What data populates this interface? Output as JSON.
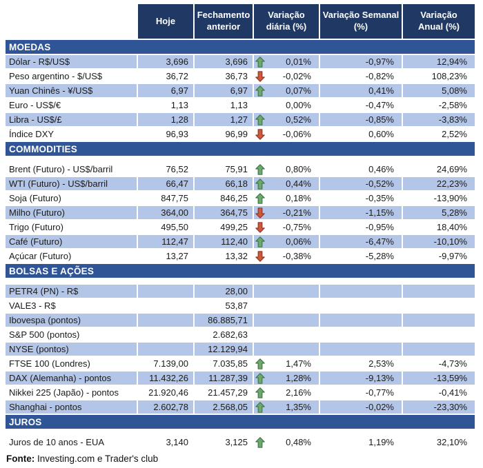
{
  "header": {
    "columns": [
      "Hoje",
      "Fechamento anterior",
      "Variação diária (%)",
      "Variação Semanal (%)",
      "Variação Anual (%)"
    ]
  },
  "sections": [
    {
      "title": "MOEDAS",
      "spacer_after_header": false,
      "rows": [
        {
          "label": "Dólar - R$/US$",
          "hoje": "3,696",
          "fechamento": "3,696",
          "arrow": "up",
          "diaria": "0,01%",
          "semanal": "-0,97%",
          "anual": "12,94%",
          "shaded": true
        },
        {
          "label": "Peso argentino - $/US$",
          "hoje": "36,72",
          "fechamento": "36,73",
          "arrow": "down",
          "diaria": "-0,02%",
          "semanal": "-0,82%",
          "anual": "108,23%",
          "shaded": false
        },
        {
          "label": "Yuan Chinês - ¥/US$",
          "hoje": "6,97",
          "fechamento": "6,97",
          "arrow": "up",
          "diaria": "0,07%",
          "semanal": "0,41%",
          "anual": "5,08%",
          "shaded": true
        },
        {
          "label": "Euro - US$/€",
          "hoje": "1,13",
          "fechamento": "1,13",
          "arrow": "none",
          "diaria": "0,00%",
          "semanal": "-0,47%",
          "anual": "-2,58%",
          "shaded": false
        },
        {
          "label": "Libra - US$/£",
          "hoje": "1,28",
          "fechamento": "1,27",
          "arrow": "up",
          "diaria": "0,52%",
          "semanal": "-0,85%",
          "anual": "-3,83%",
          "shaded": true
        },
        {
          "label": "Índice DXY",
          "hoje": "96,93",
          "fechamento": "96,99",
          "arrow": "down",
          "diaria": "-0,06%",
          "semanal": "0,60%",
          "anual": "2,52%",
          "shaded": false
        }
      ]
    },
    {
      "title": "COMMODITIES",
      "spacer_after_header": true,
      "rows": [
        {
          "label": "Brent (Futuro) - US$/barril",
          "hoje": "76,52",
          "fechamento": "75,91",
          "arrow": "up",
          "diaria": "0,80%",
          "semanal": "0,46%",
          "anual": "24,69%",
          "shaded": false
        },
        {
          "label": "WTI (Futuro) - US$/barril",
          "hoje": "66,47",
          "fechamento": "66,18",
          "arrow": "up",
          "diaria": "0,44%",
          "semanal": "-0,52%",
          "anual": "22,23%",
          "shaded": true
        },
        {
          "label": "Soja (Futuro)",
          "hoje": "847,75",
          "fechamento": "846,25",
          "arrow": "up",
          "diaria": "0,18%",
          "semanal": "-0,35%",
          "anual": "-13,90%",
          "shaded": false
        },
        {
          "label": "Milho (Futuro)",
          "hoje": "364,00",
          "fechamento": "364,75",
          "arrow": "down",
          "diaria": "-0,21%",
          "semanal": "-1,15%",
          "anual": "5,28%",
          "shaded": true
        },
        {
          "label": "Trigo (Futuro)",
          "hoje": "495,50",
          "fechamento": "499,25",
          "arrow": "down",
          "diaria": "-0,75%",
          "semanal": "-0,95%",
          "anual": "18,40%",
          "shaded": false
        },
        {
          "label": "Café (Futuro)",
          "hoje": "112,47",
          "fechamento": "112,40",
          "arrow": "up",
          "diaria": "0,06%",
          "semanal": "-6,47%",
          "anual": "-10,10%",
          "shaded": true
        },
        {
          "label": "Açúcar (Futuro)",
          "hoje": "13,27",
          "fechamento": "13,32",
          "arrow": "down",
          "diaria": "-0,38%",
          "semanal": "-5,28%",
          "anual": "-9,97%",
          "shaded": false
        }
      ]
    },
    {
      "title": "BOLSAS E AÇÕES",
      "spacer_after_header": true,
      "rows": [
        {
          "label": "PETR4 (PN) - R$",
          "hoje": "",
          "fechamento": "28,00",
          "arrow": "none",
          "diaria": "",
          "semanal": "",
          "anual": "",
          "shaded": true
        },
        {
          "label": "VALE3 - R$",
          "hoje": "",
          "fechamento": "53,87",
          "arrow": "none",
          "diaria": "",
          "semanal": "",
          "anual": "",
          "shaded": false
        },
        {
          "label": "Ibovespa (pontos)",
          "hoje": "",
          "fechamento": "86.885,71",
          "arrow": "none",
          "diaria": "",
          "semanal": "",
          "anual": "",
          "shaded": true
        },
        {
          "label": "S&P 500 (pontos)",
          "hoje": "",
          "fechamento": "2.682,63",
          "arrow": "none",
          "diaria": "",
          "semanal": "",
          "anual": "",
          "shaded": false
        },
        {
          "label": "NYSE (pontos)",
          "hoje": "",
          "fechamento": "12.129,94",
          "arrow": "none",
          "diaria": "",
          "semanal": "",
          "anual": "",
          "shaded": true
        },
        {
          "label": "FTSE 100 (Londres)",
          "hoje": "7.139,00",
          "fechamento": "7.035,85",
          "arrow": "up",
          "diaria": "1,47%",
          "semanal": "2,53%",
          "anual": "-4,73%",
          "shaded": false
        },
        {
          "label": "DAX (Alemanha) - pontos",
          "hoje": "11.432,26",
          "fechamento": "11.287,39",
          "arrow": "up",
          "diaria": "1,28%",
          "semanal": "-9,13%",
          "anual": "-13,59%",
          "shaded": true
        },
        {
          "label": "Nikkei 225 (Japão) - pontos",
          "hoje": "21.920,46",
          "fechamento": "21.457,29",
          "arrow": "up",
          "diaria": "2,16%",
          "semanal": "-0,77%",
          "anual": "-0,41%",
          "shaded": false
        },
        {
          "label": "Shanghai - pontos",
          "hoje": "2.602,78",
          "fechamento": "2.568,05",
          "arrow": "up",
          "diaria": "1,35%",
          "semanal": "-0,02%",
          "anual": "-23,30%",
          "shaded": true
        }
      ]
    },
    {
      "title": "JUROS",
      "spacer_after_header": true,
      "rows": [
        {
          "label": "Juros de 10 anos - EUA",
          "hoje": "3,140",
          "fechamento": "3,125",
          "arrow": "up",
          "diaria": "0,48%",
          "semanal": "1,19%",
          "anual": "32,10%",
          "shaded": false
        }
      ]
    }
  ],
  "footer": {
    "label": "Fonte:",
    "text": " Investing.com e Trader's club"
  },
  "icons": {
    "up": "up-arrow-icon",
    "down": "down-arrow-icon"
  },
  "colors": {
    "header_bg": "#1F3864",
    "section_band_bg": "#2F5597",
    "row_shaded_bg": "#B4C6E7",
    "row_plain_bg": "#FFFFFF",
    "header_text": "#FFFFFF",
    "body_text": "#1A1A1A",
    "up_arrow_fill": "#6FA76F",
    "up_arrow_stroke": "#3E7A47",
    "down_arrow_fill": "#D0563C",
    "down_arrow_stroke": "#8E3B26"
  }
}
